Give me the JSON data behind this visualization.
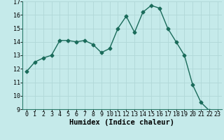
{
  "x": [
    0,
    1,
    2,
    3,
    4,
    5,
    6,
    7,
    8,
    9,
    10,
    11,
    12,
    13,
    14,
    15,
    16,
    17,
    18,
    19,
    20,
    21,
    22,
    23
  ],
  "y": [
    11.8,
    12.5,
    12.8,
    13.0,
    14.1,
    14.1,
    14.0,
    14.1,
    13.8,
    13.2,
    13.5,
    15.0,
    15.9,
    14.7,
    16.2,
    16.7,
    16.5,
    15.0,
    14.0,
    13.0,
    10.8,
    9.5,
    8.9,
    8.7
  ],
  "xlabel": "Humidex (Indice chaleur)",
  "ylim": [
    9,
    17
  ],
  "xlim_min": -0.5,
  "xlim_max": 23.5,
  "yticks": [
    9,
    10,
    11,
    12,
    13,
    14,
    15,
    16,
    17
  ],
  "xticks": [
    0,
    1,
    2,
    3,
    4,
    5,
    6,
    7,
    8,
    9,
    10,
    11,
    12,
    13,
    14,
    15,
    16,
    17,
    18,
    19,
    20,
    21,
    22,
    23
  ],
  "line_color": "#1a6b5a",
  "marker_color": "#1a6b5a",
  "bg_color": "#c5eaea",
  "grid_color": "#b0d8d8",
  "tick_label_fontsize": 6,
  "xlabel_fontsize": 7.5,
  "marker_size": 2.5,
  "line_width": 1.0
}
